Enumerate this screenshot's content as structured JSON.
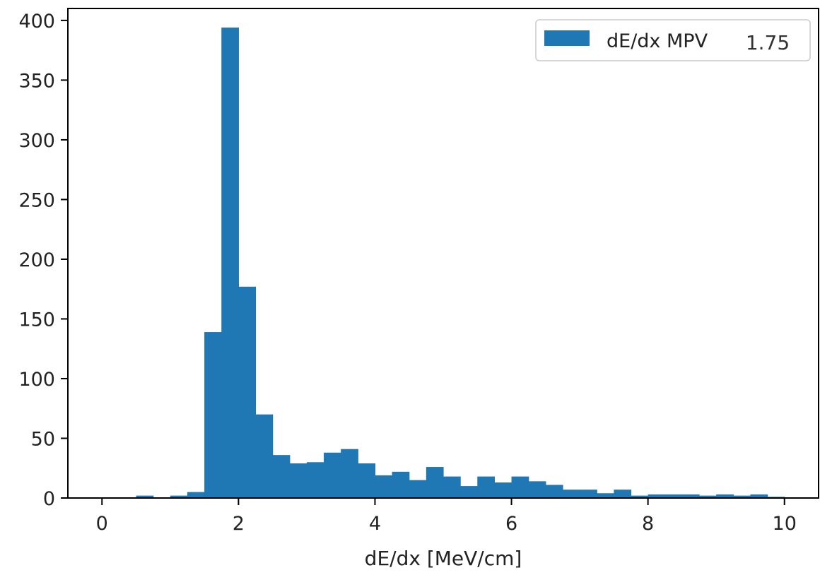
{
  "chart_data": {
    "type": "bar",
    "subtype": "histogram",
    "title": "",
    "xlabel": "dE/dx [MeV/cm]",
    "ylabel": "",
    "xlim": [
      -0.5,
      10.5
    ],
    "ylim": [
      0,
      410
    ],
    "xticks": [
      0,
      2,
      4,
      6,
      8,
      10
    ],
    "yticks": [
      0,
      50,
      100,
      150,
      200,
      250,
      300,
      350,
      400
    ],
    "grid": false,
    "legend_position": "top-right",
    "bar_color": "#1f77b4",
    "bin_width": 0.25,
    "bin_start": 0,
    "counts": [
      0,
      0,
      2,
      0,
      2,
      5,
      139,
      394,
      177,
      70,
      36,
      29,
      30,
      38,
      41,
      29,
      19,
      22,
      15,
      26,
      18,
      10,
      18,
      13,
      18,
      14,
      11,
      7,
      7,
      4,
      7,
      2,
      3,
      3,
      3,
      2,
      3,
      2,
      3,
      1
    ],
    "series": [
      {
        "name": "dE/dx MPV",
        "color": "#1f77b4"
      }
    ],
    "legend": {
      "label": "dE/dx MPV",
      "value": "1.75"
    }
  }
}
